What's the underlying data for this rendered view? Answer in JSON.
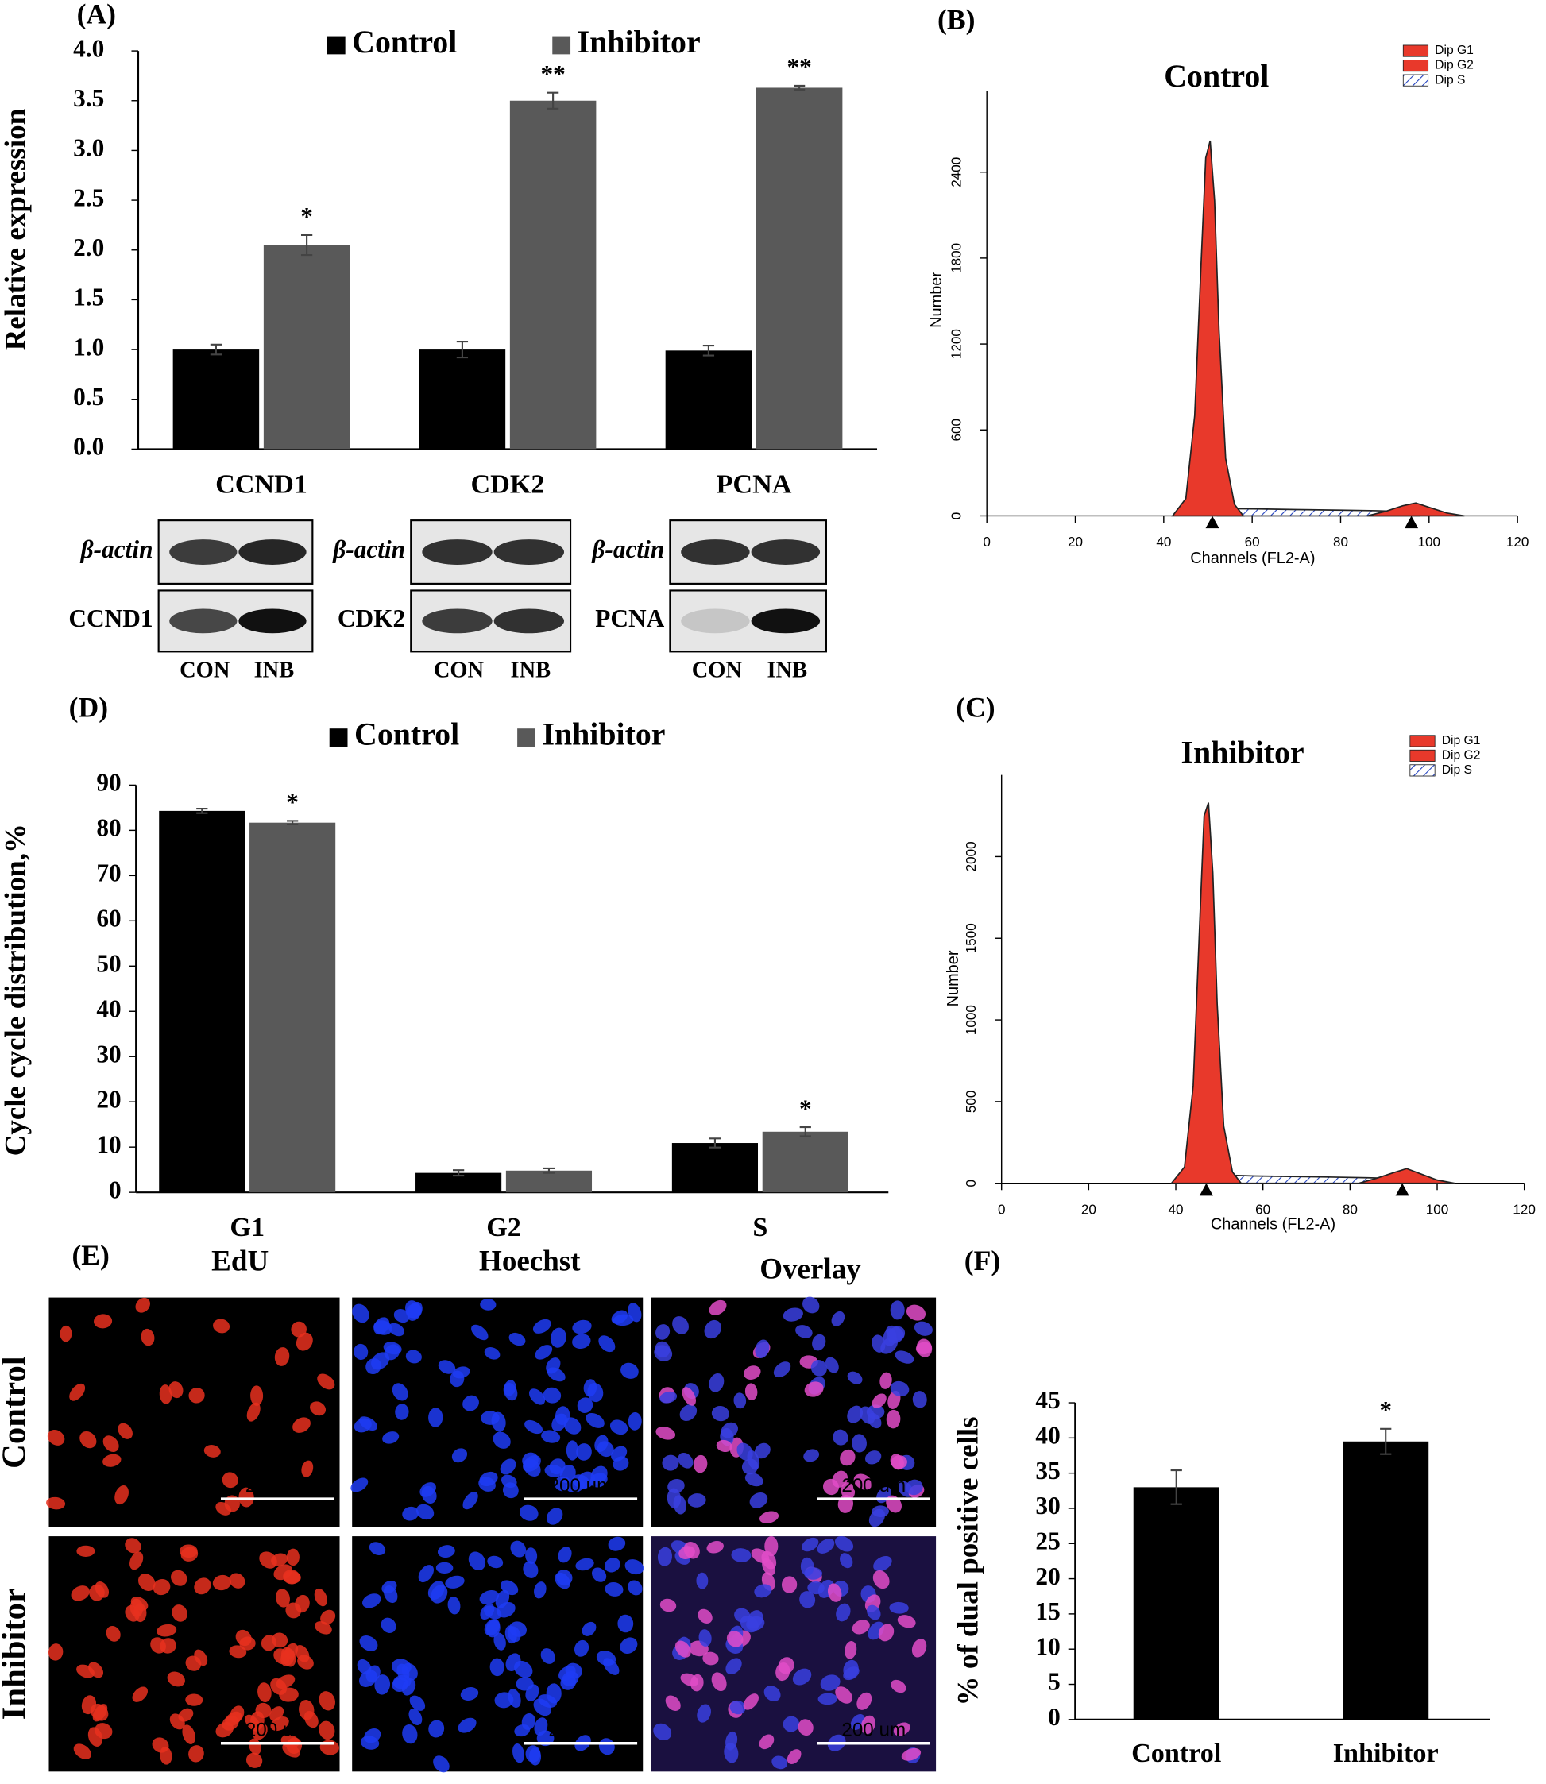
{
  "chart_data": [
    {
      "type": "bar",
      "ylabel": "Relative expression",
      "categories": [
        "CCND1",
        "CDK2",
        "PCNA"
      ],
      "series": [
        {
          "name": "Control",
          "color": "#000000",
          "values": [
            1.0,
            1.0,
            0.99
          ],
          "errors": [
            0.05,
            0.08,
            0.05
          ]
        },
        {
          "name": "Inhibitor",
          "color": "#595959",
          "values": [
            2.05,
            3.5,
            3.63
          ],
          "errors": [
            0.1,
            0.08,
            0.02
          ],
          "significance": [
            "*",
            "**",
            "**"
          ]
        }
      ],
      "ylim": [
        0,
        4
      ],
      "yticks": [
        {
          "value": 0,
          "label": "0.0"
        },
        0.5,
        {
          "value": 1,
          "label": "1.0"
        },
        1.5,
        {
          "value": 2,
          "label": "2.0"
        },
        2.5,
        {
          "value": 3,
          "label": "3.0"
        },
        3.5,
        {
          "value": 4,
          "label": "4.0"
        }
      ]
    },
    {
      "type": "flow-histogram",
      "title": "Control",
      "xlabel": "Channels (FL2-A)",
      "ylabel": "Number",
      "xlim": [
        0,
        120
      ],
      "xticks": [
        0,
        20,
        40,
        60,
        80,
        100,
        120
      ],
      "ylim": [
        0,
        2970
      ],
      "yticks": [
        0,
        600,
        1200,
        1800,
        2400
      ],
      "peak_markers": [
        51,
        96
      ],
      "series": [
        {
          "name": "Dip G1",
          "color": "#e8392b",
          "x": [
            42,
            45,
            47,
            48.5,
            49.5,
            50.5,
            51.5,
            52.5,
            54,
            56,
            58
          ],
          "values": [
            0,
            120,
            700,
            1800,
            2500,
            2620,
            2200,
            1300,
            400,
            80,
            0
          ]
        },
        {
          "name": "Dip G2",
          "color": "#e8392b",
          "x": [
            86,
            90,
            94,
            97,
            100,
            104,
            108
          ],
          "values": [
            0,
            30,
            70,
            90,
            60,
            20,
            0
          ]
        },
        {
          "name": "Dip S",
          "color": "#1f3fbf",
          "x": [
            52,
            56,
            62,
            70,
            80,
            88,
            94,
            98
          ],
          "values": [
            0,
            50,
            48,
            44,
            40,
            36,
            30,
            0
          ]
        }
      ]
    },
    {
      "type": "flow-histogram",
      "title": "Inhibitor",
      "xlabel": "Channels (FL2-A)",
      "ylabel": "Number",
      "xlim": [
        0,
        120
      ],
      "xticks": [
        0,
        20,
        40,
        60,
        80,
        100,
        120
      ],
      "ylim": [
        0,
        2500
      ],
      "yticks": [
        0,
        500,
        1000,
        1500,
        2000
      ],
      "peak_markers": [
        47,
        92
      ],
      "series": [
        {
          "name": "Dip G1",
          "color": "#e8392b",
          "x": [
            39,
            42,
            44,
            45.5,
            46.5,
            47.5,
            48.5,
            49.5,
            51,
            53,
            55
          ],
          "values": [
            0,
            100,
            600,
            1600,
            2250,
            2330,
            1900,
            1100,
            350,
            70,
            0
          ]
        },
        {
          "name": "Dip G2",
          "color": "#e8392b",
          "x": [
            82,
            86,
            90,
            93,
            96,
            100,
            104
          ],
          "values": [
            0,
            30,
            65,
            90,
            60,
            20,
            0
          ]
        },
        {
          "name": "Dip S",
          "color": "#1f3fbf",
          "x": [
            48,
            52,
            58,
            66,
            76,
            84,
            90,
            94
          ],
          "values": [
            0,
            50,
            45,
            42,
            38,
            34,
            30,
            0
          ]
        }
      ]
    },
    {
      "type": "bar",
      "ylabel": "Cycle cycle distribution,%",
      "categories": [
        "G1",
        "G2",
        "S"
      ],
      "series": [
        {
          "name": "Control",
          "color": "#000000",
          "values": [
            84.3,
            4.3,
            10.9
          ],
          "errors": [
            0.5,
            0.6,
            1.0
          ]
        },
        {
          "name": "Inhibitor",
          "color": "#595959",
          "values": [
            81.7,
            4.8,
            13.4
          ],
          "errors": [
            0.4,
            0.5,
            1.0
          ],
          "significance": [
            "*",
            null,
            "*"
          ]
        }
      ],
      "ylim": [
        0,
        90
      ],
      "yticks": [
        0,
        10,
        20,
        30,
        40,
        50,
        60,
        70,
        80,
        90
      ]
    },
    {
      "type": "bar",
      "ylabel": "% of dual positive cells",
      "categories": [
        "Control",
        "Inhibitor"
      ],
      "series": [
        {
          "color": "#000000",
          "values": [
            33,
            39.5
          ],
          "errors": [
            2.4,
            1.8
          ],
          "significance": [
            null,
            "*"
          ]
        }
      ],
      "ylim": [
        0,
        45
      ],
      "yticks": [
        0,
        5,
        10,
        15,
        20,
        25,
        30,
        35,
        40,
        45
      ]
    }
  ],
  "panel_labels": [
    "(A)",
    "(B)",
    "(C)",
    "(D)",
    "(E)",
    "(F)"
  ],
  "western_blot": {
    "loading": "β-actin",
    "proteins": [
      "CCND1",
      "CDK2",
      "PCNA"
    ],
    "lanes": [
      "CON",
      "INB"
    ]
  },
  "microscopy": {
    "columns": [
      "EdU",
      "Hoechst",
      "Overlay"
    ],
    "rows": [
      "Control",
      "Inhibitor"
    ],
    "scale_bar": "200 um"
  }
}
